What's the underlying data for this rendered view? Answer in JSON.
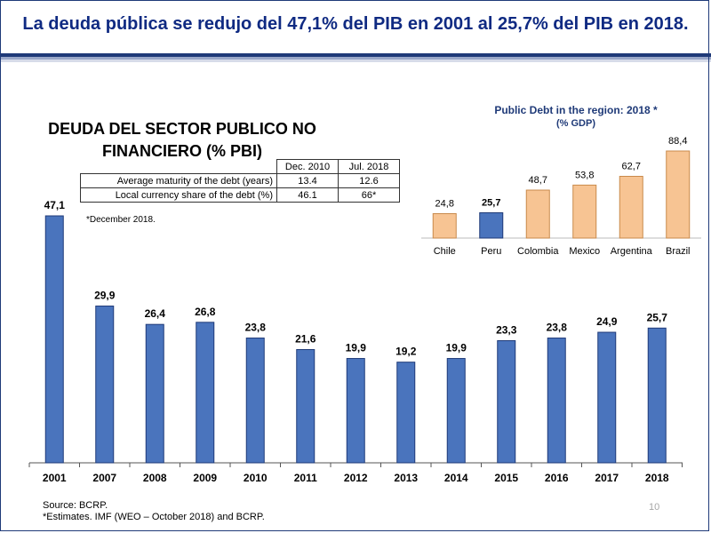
{
  "headline": "La deuda pública se redujo del 47,1% del PIB en 2001 al 25,7% del PIB en 2018.",
  "chart_data": [
    {
      "type": "bar",
      "title": "DEUDA DEL SECTOR PUBLICO NO FINANCIERO (% PBI)",
      "title_line1": "DEUDA DEL SECTOR PUBLICO NO",
      "title_line2": "FINANCIERO (% PBI)",
      "categories": [
        "2001",
        "2007",
        "2008",
        "2009",
        "2010",
        "2011",
        "2012",
        "2013",
        "2014",
        "2015",
        "2016",
        "2017",
        "2018"
      ],
      "values": [
        47.1,
        29.9,
        26.4,
        26.8,
        23.8,
        21.6,
        19.9,
        19.2,
        19.9,
        23.3,
        23.8,
        24.9,
        25.7
      ],
      "value_labels": [
        "47,1",
        "29,9",
        "26,4",
        "26,8",
        "23,8",
        "21,6",
        "19,9",
        "19,2",
        "19,9",
        "23,3",
        "23,8",
        "24,9",
        "25,7"
      ],
      "ylim": [
        0,
        47.1
      ],
      "grid": false,
      "colors": {
        "bar": "#4a74bd",
        "bar_edge": "#1f3a78"
      }
    },
    {
      "type": "bar",
      "title": "Public Debt  in the region: 2018 *",
      "subtitle": "(% GDP)",
      "categories": [
        "Chile",
        "Peru",
        "Colombia",
        "Mexico",
        "Argentina",
        "Brazil"
      ],
      "values": [
        24.8,
        25.7,
        48.7,
        53.8,
        62.7,
        88.4
      ],
      "value_labels": [
        "24,8",
        "25,7",
        "48,7",
        "53,8",
        "62,7",
        "88,4"
      ],
      "highlight": "Peru",
      "ylim": [
        0,
        88.4
      ],
      "grid": false,
      "colors": {
        "bar": "#f7c493",
        "bar_edge": "#c98a4b",
        "highlight": "#4a74bd",
        "highlight_edge": "#1f3a78"
      }
    }
  ],
  "table": {
    "headers": [
      "Dec. 2010",
      "Jul. 2018"
    ],
    "rows": [
      {
        "label": "Average maturity of the debt (years)",
        "v1": "13.4",
        "v2": "12.6"
      },
      {
        "label": "Local currency share of the debt (%)",
        "v1": "46.1",
        "v2": "66*"
      }
    ],
    "note": "*December 2018."
  },
  "footnote": {
    "source": "Source: BCRP.",
    "estimates": "*Estimates. IMF (WEO – October 2018) and BCRP."
  },
  "page_number": "10"
}
